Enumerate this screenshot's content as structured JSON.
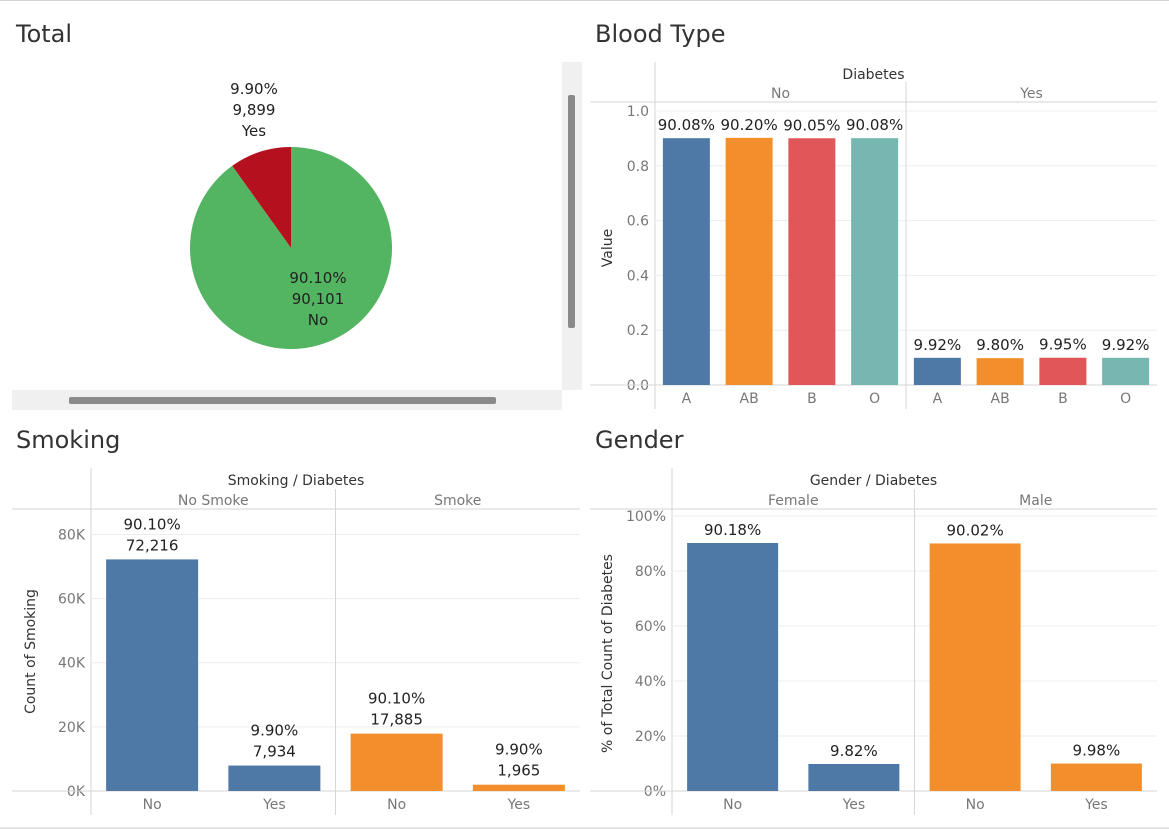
{
  "colors": {
    "blue": "#4e79a7",
    "orange": "#f28e2b",
    "red": "#e15759",
    "teal": "#76b7b2",
    "pie_no": "#53b461",
    "pie_yes": "#b5101e"
  },
  "panels": {
    "total": "Total",
    "blood": "Blood Type",
    "smoking": "Smoking",
    "gender": "Gender"
  },
  "chart_data": [
    {
      "id": "total",
      "type": "pie",
      "title": "Total",
      "slices": [
        {
          "label": "Yes",
          "value": 9899,
          "pct_label": "9.90%",
          "count_label": "9,899",
          "color": "#b5101e"
        },
        {
          "label": "No",
          "value": 90101,
          "pct_label": "90.10%",
          "count_label": "90,101",
          "color": "#53b461"
        }
      ]
    },
    {
      "id": "blood",
      "type": "bar",
      "title": "Blood Type",
      "header": "Diabetes",
      "ylabel": "Value",
      "ylim": [
        0,
        1.0
      ],
      "yticks": [
        "0.0",
        "0.2",
        "0.4",
        "0.6",
        "0.8",
        "1.0"
      ],
      "groups": [
        {
          "name": "No",
          "categories": [
            "A",
            "AB",
            "B",
            "O"
          ],
          "values": [
            0.9008,
            0.902,
            0.9005,
            0.9008
          ],
          "labels": [
            "90.08%",
            "90.20%",
            "90.05%",
            "90.08%"
          ]
        },
        {
          "name": "Yes",
          "categories": [
            "A",
            "AB",
            "B",
            "O"
          ],
          "values": [
            0.0992,
            0.098,
            0.0995,
            0.0992
          ],
          "labels": [
            "9.92%",
            "9.80%",
            "9.95%",
            "9.92%"
          ]
        }
      ]
    },
    {
      "id": "smoking",
      "type": "bar",
      "title": "Smoking",
      "header": "Smoking / Diabetes",
      "ylabel": "Count of Smoking",
      "ylim": [
        0,
        87000
      ],
      "yticks": [
        "0K",
        "20K",
        "40K",
        "60K",
        "80K"
      ],
      "groups": [
        {
          "name": "No Smoke",
          "categories": [
            "No",
            "Yes"
          ],
          "values": [
            72216,
            7934
          ],
          "labels": [
            "90.10%",
            "9.90%"
          ],
          "labels2": [
            "72,216",
            "7,934"
          ]
        },
        {
          "name": "Smoke",
          "categories": [
            "No",
            "Yes"
          ],
          "values": [
            17885,
            1965
          ],
          "labels": [
            "90.10%",
            "9.90%"
          ],
          "labels2": [
            "17,885",
            "1,965"
          ]
        }
      ]
    },
    {
      "id": "gender",
      "type": "bar",
      "title": "Gender",
      "header": "Gender  /  Diabetes",
      "ylabel": "% of Total Count of Diabetes",
      "ylim": [
        0,
        1.0
      ],
      "yticks": [
        "0%",
        "20%",
        "40%",
        "60%",
        "80%",
        "100%"
      ],
      "groups": [
        {
          "name": "Female",
          "categories": [
            "No",
            "Yes"
          ],
          "values": [
            0.9018,
            0.0982
          ],
          "labels": [
            "90.18%",
            "9.82%"
          ]
        },
        {
          "name": "Male",
          "categories": [
            "No",
            "Yes"
          ],
          "values": [
            0.9002,
            0.0998
          ],
          "labels": [
            "90.02%",
            "9.98%"
          ]
        }
      ]
    }
  ]
}
